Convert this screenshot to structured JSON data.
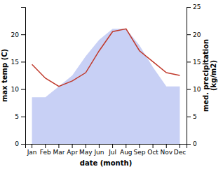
{
  "chart_data": {
    "type": "line",
    "xlabel": "date (month)",
    "ylabel": "max temp (C)",
    "y2label": "med. precipitation\n(kg/m2)",
    "categories": [
      "Jan",
      "Feb",
      "Mar",
      "Apr",
      "May",
      "Jun",
      "Jul",
      "Aug",
      "Sep",
      "Oct",
      "Nov",
      "Dec"
    ],
    "series": [
      {
        "type": "area",
        "color": "#c8d0f5",
        "values": [
          8.5,
          8.5,
          10.5,
          12.5,
          16.0,
          19.0,
          21.0,
          21.0,
          18.0,
          14.0,
          10.5,
          10.5
        ]
      },
      {
        "type": "line",
        "color": "#c0392b",
        "axis": "y2",
        "values": [
          14.5,
          12.0,
          10.5,
          11.5,
          13.0,
          17.0,
          20.5,
          21.0,
          17.0,
          15.0,
          13.0,
          12.5
        ]
      }
    ],
    "ylim": [
      0,
      25
    ],
    "yticks": [
      0,
      5,
      10,
      15,
      20
    ],
    "y2lim": [
      0,
      25
    ],
    "y2ticks": [
      0,
      5,
      10,
      15,
      20,
      25
    ],
    "grid": false
  }
}
